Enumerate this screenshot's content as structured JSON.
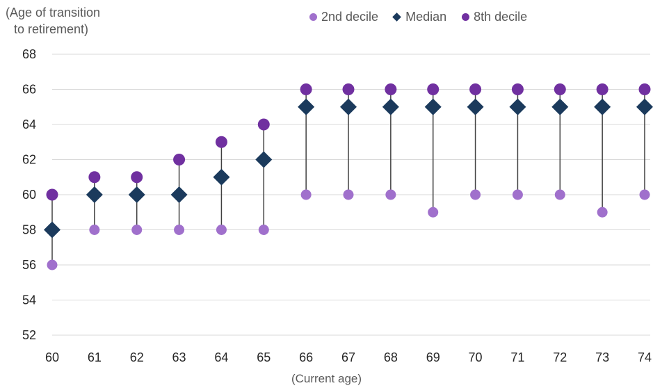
{
  "chart_data": {
    "type": "scatter",
    "ylabel": "(Age of transition to retirement)",
    "ylabel_lines": [
      "(Age of transition",
      "to retirement)"
    ],
    "xlabel": "(Current age)",
    "x": [
      60,
      61,
      62,
      63,
      64,
      65,
      66,
      67,
      68,
      69,
      70,
      71,
      72,
      73,
      74
    ],
    "ylim": [
      52,
      68
    ],
    "yticks": [
      52,
      54,
      56,
      58,
      60,
      62,
      64,
      66,
      68
    ],
    "grid": true,
    "legend_position": "top",
    "series": [
      {
        "name": "2nd decile",
        "marker": "circle",
        "color": "#a070cc",
        "values": [
          56,
          58,
          58,
          58,
          58,
          58,
          60,
          60,
          60,
          59,
          60,
          60,
          60,
          59,
          60
        ]
      },
      {
        "name": "Median",
        "marker": "diamond",
        "color": "#1b3a5c",
        "values": [
          58,
          60,
          60,
          60,
          61,
          62,
          65,
          65,
          65,
          65,
          65,
          65,
          65,
          65,
          65
        ]
      },
      {
        "name": "8th decile",
        "marker": "circle",
        "color": "#7030a0",
        "values": [
          60,
          61,
          61,
          62,
          63,
          64,
          66,
          66,
          66,
          66,
          66,
          66,
          66,
          66,
          66
        ]
      }
    ],
    "range_line_color": "#404040",
    "gridline_color": "#d9d9d9"
  }
}
